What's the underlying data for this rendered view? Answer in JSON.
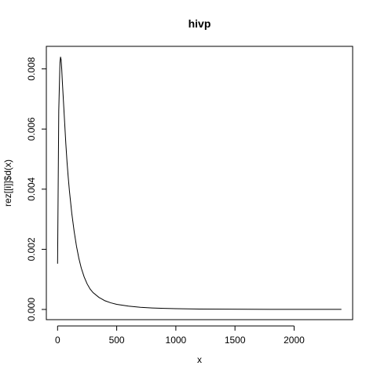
{
  "chart_data": {
    "type": "line",
    "title": "hivp",
    "xlabel": "x",
    "ylabel": "rez[[i]]$d(x)",
    "xlim": [
      -95,
      2495
    ],
    "ylim": [
      -0.00034,
      0.00875
    ],
    "x_ticks": [
      0,
      500,
      1000,
      1500,
      2000
    ],
    "x_tick_labels": [
      "0",
      "500",
      "1000",
      "1500",
      "2000"
    ],
    "y_ticks": [
      0,
      0.002,
      0.004,
      0.006,
      0.008
    ],
    "y_tick_labels": [
      "0.000",
      "0.002",
      "0.004",
      "0.006",
      "0.008"
    ],
    "grid": false,
    "legend": "none",
    "series": [
      {
        "color": "#000000",
        "x": [
          0,
          10,
          20,
          25,
          30,
          35,
          40,
          50,
          60,
          70,
          80,
          90,
          100,
          120,
          140,
          160,
          180,
          200,
          225,
          250,
          275,
          300,
          350,
          400,
          450,
          500,
          600,
          700,
          800,
          900,
          1000,
          1200,
          1400,
          1600,
          1800,
          2000,
          2200,
          2400
        ],
        "y": [
          0.00152,
          0.0066,
          0.0082,
          0.0084,
          0.0083,
          0.008,
          0.0076,
          0.0069,
          0.0062,
          0.0055,
          0.0049,
          0.0044,
          0.00395,
          0.0032,
          0.0026,
          0.0021,
          0.0017,
          0.00138,
          0.00108,
          0.00085,
          0.00068,
          0.00056,
          0.0004,
          0.00029,
          0.00022,
          0.00017,
          0.00011,
          7e-05,
          4.8e-05,
          3.4e-05,
          2.4e-05,
          1.4e-05,
          9e-06,
          6e-06,
          4e-06,
          3e-06,
          2e-06,
          1.5e-06
        ]
      }
    ]
  }
}
